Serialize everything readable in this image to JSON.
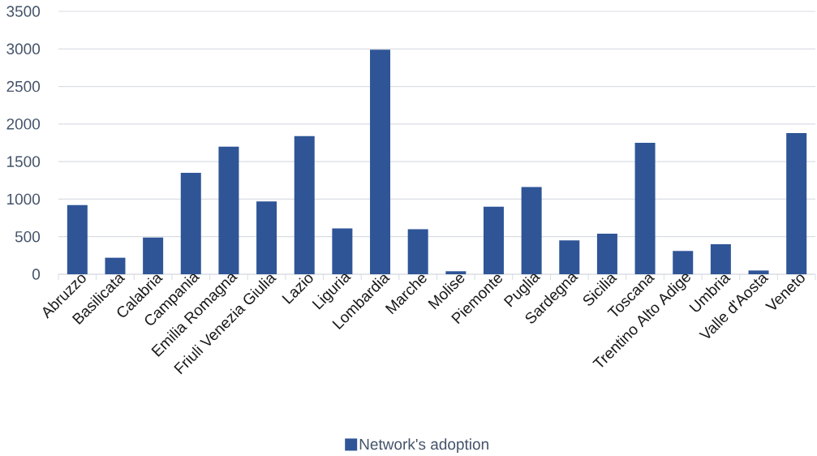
{
  "chart_data": {
    "type": "bar",
    "categories": [
      "Abruzzo",
      "Basilicata",
      "Calabria",
      "Campania",
      "Emilia Romagna",
      "Friuli Venezia Giulia",
      "Lazio",
      "Liguria",
      "Lombardia",
      "Marche",
      "Molise",
      "Piemonte",
      "Puglia",
      "Sardegna",
      "Sicilia",
      "Toscana",
      "Trentino Alto Adige",
      "Umbria",
      "Valle d'Aosta",
      "Veneto"
    ],
    "series": [
      {
        "name": "Network's adoption",
        "color": "#2f5597",
        "values": [
          920,
          220,
          490,
          1350,
          1700,
          970,
          1840,
          610,
          2990,
          600,
          40,
          900,
          1160,
          450,
          540,
          1750,
          310,
          400,
          50,
          1880
        ]
      }
    ],
    "ylim": [
      0,
      3500
    ],
    "yticks": [
      0,
      500,
      1000,
      1500,
      2000,
      2500,
      3000,
      3500
    ],
    "grid": "y",
    "legend": "bottom"
  }
}
